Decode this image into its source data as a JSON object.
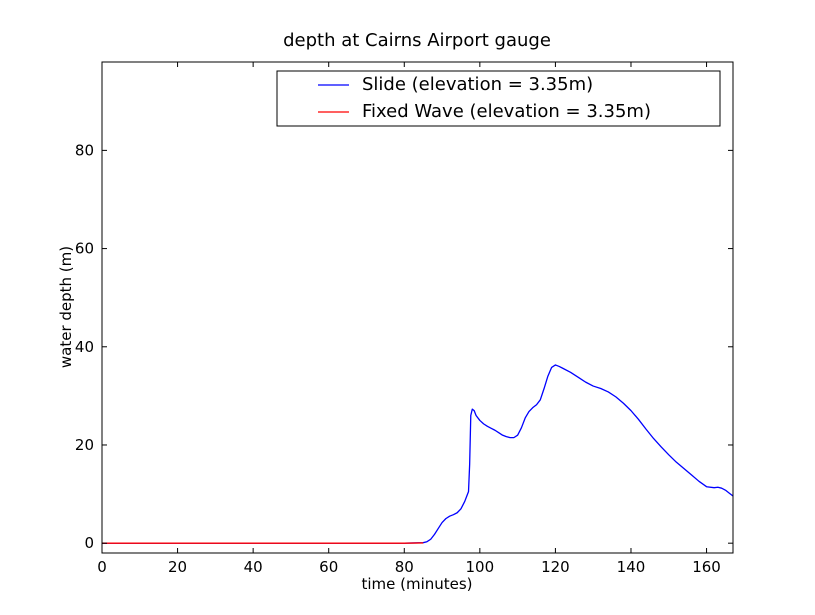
{
  "chart_data": {
    "type": "line",
    "title": "depth at Cairns Airport gauge",
    "xlabel": "time (minutes)",
    "ylabel": "water depth (m)",
    "xlim": [
      0,
      167
    ],
    "ylim": [
      -2,
      98
    ],
    "xticks": [
      0,
      20,
      40,
      60,
      80,
      100,
      120,
      140,
      160
    ],
    "yticks": [
      0,
      20,
      40,
      60,
      80
    ],
    "grid": false,
    "legend_position": "top-right",
    "series": [
      {
        "name": "Slide (elevation = 3.35m)",
        "color": "#0000ff",
        "x": [
          0,
          20,
          40,
          60,
          80,
          85,
          86,
          87,
          88,
          89,
          90,
          91,
          92,
          93,
          94,
          95,
          96,
          96.5,
          97,
          97.3,
          97.6,
          98,
          98.5,
          99,
          100,
          101,
          102,
          103,
          104,
          105,
          106,
          107,
          108,
          109,
          110,
          111,
          112,
          113,
          114,
          115,
          116,
          117,
          118,
          119,
          120,
          121,
          122,
          124,
          126,
          128,
          130,
          132,
          134,
          136,
          138,
          140,
          142,
          144,
          146,
          148,
          150,
          152,
          154,
          156,
          158,
          160,
          162,
          163,
          164,
          165,
          166,
          167
        ],
        "y": [
          0,
          0,
          0,
          0,
          0,
          0.1,
          0.3,
          0.8,
          1.8,
          3.0,
          4.2,
          5.0,
          5.5,
          5.8,
          6.2,
          7.0,
          8.5,
          9.5,
          10.5,
          16,
          26,
          27.3,
          27,
          26,
          25,
          24.3,
          23.8,
          23.4,
          23.0,
          22.5,
          22.0,
          21.7,
          21.5,
          21.5,
          22.0,
          23.5,
          25.5,
          26.8,
          27.6,
          28.2,
          29.2,
          31.5,
          34.0,
          35.8,
          36.3,
          36.0,
          35.6,
          34.8,
          33.8,
          32.8,
          32.0,
          31.5,
          30.8,
          29.8,
          28.5,
          27.0,
          25.2,
          23.2,
          21.3,
          19.6,
          18.0,
          16.5,
          15.2,
          13.9,
          12.6,
          11.5,
          11.3,
          11.4,
          11.2,
          10.8,
          10.2,
          9.6
        ]
      },
      {
        "name": "Fixed Wave (elevation = 3.35m)",
        "color": "#ff0000",
        "x": [
          0,
          20,
          40,
          60,
          80,
          85
        ],
        "y": [
          0,
          0,
          0,
          0,
          0,
          0.05
        ]
      }
    ]
  }
}
